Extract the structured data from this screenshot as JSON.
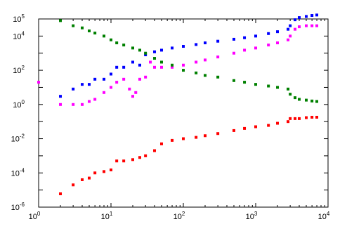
{
  "chart_data": {
    "type": "scatter",
    "title": "",
    "xlabel": "",
    "ylabel": "",
    "xscale": "log",
    "yscale": "log",
    "xlim": [
      1,
      10000
    ],
    "ylim": [
      1e-06,
      100000
    ],
    "grid": false,
    "legend": "none",
    "xticks": [
      {
        "base": "10",
        "exp": "0",
        "value": 1
      },
      {
        "base": "10",
        "exp": "1",
        "value": 10
      },
      {
        "base": "10",
        "exp": "2",
        "value": 100
      },
      {
        "base": "10",
        "exp": "3",
        "value": 1000
      },
      {
        "base": "10",
        "exp": "4",
        "value": 10000
      }
    ],
    "yticks": [
      {
        "base": "10",
        "exp": "-6",
        "value": 1e-06
      },
      {
        "base": "10",
        "exp": "-4",
        "value": 0.0001
      },
      {
        "base": "10",
        "exp": "-2",
        "value": 0.01
      },
      {
        "base": "10",
        "exp": "0",
        "value": 1
      },
      {
        "base": "10",
        "exp": "2",
        "value": 100
      },
      {
        "base": "10",
        "exp": "4",
        "value": 10000
      },
      {
        "base": "10",
        "exp": "5",
        "value": 100000
      }
    ],
    "series": [
      {
        "color": "#0000ff",
        "x": [
          2,
          3,
          4,
          5,
          6,
          8,
          10,
          12,
          15,
          20,
          25,
          30,
          40,
          50,
          70,
          100,
          150,
          200,
          300,
          500,
          700,
          1000,
          1500,
          2000,
          2800,
          3000,
          3500,
          4000,
          5000,
          6000,
          7000
        ],
        "y": [
          3,
          8,
          15,
          15,
          30,
          30,
          60,
          150,
          150,
          300,
          200,
          800,
          1200,
          1500,
          2000,
          2500,
          3200,
          4000,
          5000,
          6500,
          8000,
          10000,
          14000,
          18000,
          25000,
          40000,
          90000,
          120000,
          140000,
          160000,
          170000
        ]
      },
      {
        "color": "#ff00ff",
        "x": [
          1,
          2,
          3,
          4,
          5,
          6,
          8,
          10,
          12,
          15,
          18,
          20,
          22,
          25,
          30,
          35,
          40,
          50,
          70,
          100,
          150,
          200,
          300,
          500,
          700,
          1000,
          1500,
          2000,
          2800,
          3000,
          3500,
          4000,
          5000,
          6000,
          7000
        ],
        "y": [
          20,
          1,
          1,
          1,
          1.5,
          2,
          5,
          10,
          20,
          30,
          8,
          3,
          5,
          30,
          40,
          300,
          150,
          150,
          150,
          200,
          300,
          400,
          600,
          1000,
          1500,
          2000,
          3000,
          4000,
          6000,
          10000,
          25000,
          35000,
          40000,
          40000,
          40000
        ]
      },
      {
        "color": "#008000",
        "x": [
          2,
          3,
          4,
          5,
          6,
          8,
          10,
          12,
          15,
          20,
          25,
          30,
          40,
          50,
          70,
          100,
          150,
          200,
          300,
          500,
          700,
          1000,
          1500,
          2000,
          2800,
          3000,
          3500,
          4000,
          5000,
          6000,
          7000
        ],
        "y": [
          80000,
          40000,
          30000,
          20000,
          15000,
          10000,
          6000,
          4000,
          3000,
          2000,
          1500,
          1000,
          500,
          300,
          200,
          100,
          70,
          50,
          40,
          25,
          20,
          15,
          12,
          10,
          8,
          4,
          2.5,
          2,
          1.8,
          1.6,
          1.5
        ]
      },
      {
        "color": "#ff0000",
        "x": [
          2,
          3,
          4,
          5,
          6,
          8,
          10,
          12,
          15,
          20,
          25,
          30,
          40,
          50,
          70,
          100,
          150,
          200,
          300,
          500,
          700,
          1000,
          1500,
          2000,
          2800,
          3000,
          3500,
          4000,
          5000,
          6000,
          7000
        ],
        "y": [
          6e-06,
          2e-05,
          4e-05,
          5e-05,
          0.0001,
          0.00012,
          0.00015,
          0.0005,
          0.0005,
          0.0006,
          0.0008,
          0.001,
          0.002,
          0.005,
          0.008,
          0.01,
          0.012,
          0.015,
          0.02,
          0.03,
          0.04,
          0.05,
          0.06,
          0.08,
          0.1,
          0.15,
          0.15,
          0.15,
          0.17,
          0.18,
          0.18
        ]
      }
    ]
  }
}
